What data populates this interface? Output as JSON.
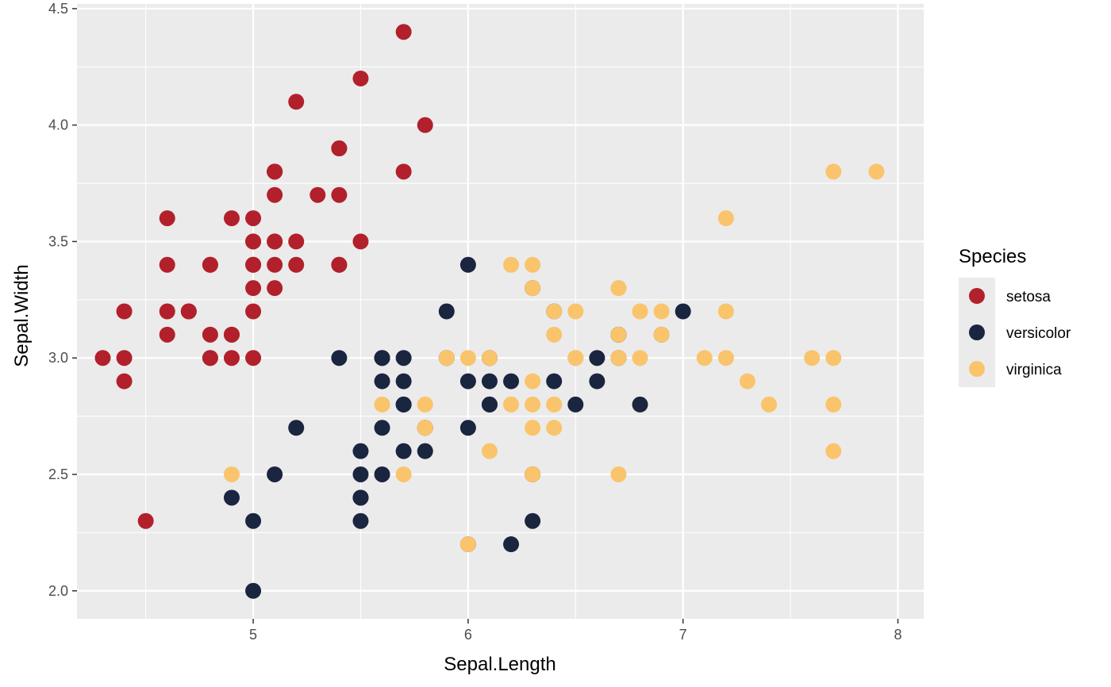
{
  "chart_data": {
    "type": "scatter",
    "title": "",
    "xlabel": "Sepal.Length",
    "ylabel": "Sepal.Width",
    "xlim": [
      4.18,
      8.12
    ],
    "ylim": [
      1.88,
      4.52
    ],
    "x_ticks": [
      5,
      6,
      7,
      8
    ],
    "x_tick_labels": [
      "5",
      "6",
      "7",
      "8"
    ],
    "y_ticks": [
      2.0,
      2.5,
      3.0,
      3.5,
      4.0,
      4.5
    ],
    "y_tick_labels": [
      "2.0",
      "2.5",
      "3.0",
      "3.5",
      "4.0",
      "4.5"
    ],
    "grid": true,
    "legend": {
      "title": "Species",
      "position": "right"
    },
    "series": [
      {
        "name": "setosa",
        "color": "#b2202b",
        "points": [
          [
            5.1,
            3.5
          ],
          [
            4.9,
            3.0
          ],
          [
            4.7,
            3.2
          ],
          [
            4.6,
            3.1
          ],
          [
            5.0,
            3.6
          ],
          [
            5.4,
            3.9
          ],
          [
            4.6,
            3.4
          ],
          [
            5.0,
            3.4
          ],
          [
            4.4,
            2.9
          ],
          [
            4.9,
            3.1
          ],
          [
            5.4,
            3.7
          ],
          [
            4.8,
            3.4
          ],
          [
            4.8,
            3.0
          ],
          [
            4.3,
            3.0
          ],
          [
            5.8,
            4.0
          ],
          [
            5.7,
            4.4
          ],
          [
            5.4,
            3.9
          ],
          [
            5.1,
            3.5
          ],
          [
            5.7,
            3.8
          ],
          [
            5.1,
            3.8
          ],
          [
            5.4,
            3.4
          ],
          [
            5.1,
            3.7
          ],
          [
            4.6,
            3.6
          ],
          [
            5.1,
            3.3
          ],
          [
            4.8,
            3.4
          ],
          [
            5.0,
            3.0
          ],
          [
            5.0,
            3.4
          ],
          [
            5.2,
            3.5
          ],
          [
            5.2,
            3.4
          ],
          [
            4.7,
            3.2
          ],
          [
            4.8,
            3.1
          ],
          [
            5.4,
            3.4
          ],
          [
            5.2,
            4.1
          ],
          [
            5.5,
            4.2
          ],
          [
            4.9,
            3.1
          ],
          [
            5.0,
            3.2
          ],
          [
            5.5,
            3.5
          ],
          [
            4.9,
            3.6
          ],
          [
            4.4,
            3.0
          ],
          [
            5.1,
            3.4
          ],
          [
            5.0,
            3.5
          ],
          [
            4.5,
            2.3
          ],
          [
            4.4,
            3.2
          ],
          [
            5.0,
            3.5
          ],
          [
            5.1,
            3.8
          ],
          [
            4.8,
            3.0
          ],
          [
            5.1,
            3.8
          ],
          [
            4.6,
            3.2
          ],
          [
            5.3,
            3.7
          ],
          [
            5.0,
            3.3
          ]
        ]
      },
      {
        "name": "versicolor",
        "color": "#1a2540",
        "points": [
          [
            7.0,
            3.2
          ],
          [
            6.4,
            3.2
          ],
          [
            6.9,
            3.1
          ],
          [
            5.5,
            2.3
          ],
          [
            6.5,
            2.8
          ],
          [
            5.7,
            2.8
          ],
          [
            6.3,
            3.3
          ],
          [
            4.9,
            2.4
          ],
          [
            6.6,
            2.9
          ],
          [
            5.2,
            2.7
          ],
          [
            5.0,
            2.0
          ],
          [
            5.9,
            3.0
          ],
          [
            6.0,
            2.2
          ],
          [
            6.1,
            2.9
          ],
          [
            5.6,
            2.9
          ],
          [
            6.7,
            3.1
          ],
          [
            5.6,
            3.0
          ],
          [
            5.8,
            2.7
          ],
          [
            6.2,
            2.2
          ],
          [
            5.6,
            2.5
          ],
          [
            5.9,
            3.2
          ],
          [
            6.1,
            2.8
          ],
          [
            6.3,
            2.5
          ],
          [
            6.1,
            2.8
          ],
          [
            6.4,
            2.9
          ],
          [
            6.6,
            3.0
          ],
          [
            6.8,
            2.8
          ],
          [
            6.7,
            3.0
          ],
          [
            6.0,
            2.9
          ],
          [
            5.7,
            2.6
          ],
          [
            5.5,
            2.4
          ],
          [
            5.5,
            2.4
          ],
          [
            5.8,
            2.7
          ],
          [
            6.0,
            2.7
          ],
          [
            5.4,
            3.0
          ],
          [
            6.0,
            3.4
          ],
          [
            6.7,
            3.1
          ],
          [
            6.3,
            2.3
          ],
          [
            5.6,
            3.0
          ],
          [
            5.5,
            2.5
          ],
          [
            5.5,
            2.6
          ],
          [
            6.1,
            3.0
          ],
          [
            5.8,
            2.6
          ],
          [
            5.0,
            2.3
          ],
          [
            5.6,
            2.7
          ],
          [
            5.7,
            3.0
          ],
          [
            5.7,
            2.9
          ],
          [
            6.2,
            2.9
          ],
          [
            5.1,
            2.5
          ],
          [
            5.7,
            2.8
          ]
        ]
      },
      {
        "name": "virginica",
        "color": "#f9c46b",
        "points": [
          [
            6.3,
            3.3
          ],
          [
            5.8,
            2.7
          ],
          [
            7.1,
            3.0
          ],
          [
            6.3,
            2.9
          ],
          [
            6.5,
            3.0
          ],
          [
            7.6,
            3.0
          ],
          [
            4.9,
            2.5
          ],
          [
            7.3,
            2.9
          ],
          [
            6.7,
            2.5
          ],
          [
            7.2,
            3.6
          ],
          [
            6.5,
            3.2
          ],
          [
            6.4,
            2.7
          ],
          [
            6.8,
            3.0
          ],
          [
            5.7,
            2.5
          ],
          [
            5.8,
            2.8
          ],
          [
            6.4,
            3.2
          ],
          [
            6.5,
            3.0
          ],
          [
            7.7,
            3.8
          ],
          [
            7.7,
            2.6
          ],
          [
            6.0,
            2.2
          ],
          [
            6.9,
            3.2
          ],
          [
            5.6,
            2.8
          ],
          [
            7.7,
            2.8
          ],
          [
            6.3,
            2.7
          ],
          [
            6.7,
            3.3
          ],
          [
            7.2,
            3.2
          ],
          [
            6.2,
            2.8
          ],
          [
            6.1,
            3.0
          ],
          [
            6.4,
            2.8
          ],
          [
            7.2,
            3.0
          ],
          [
            7.4,
            2.8
          ],
          [
            7.9,
            3.8
          ],
          [
            6.4,
            2.8
          ],
          [
            6.3,
            2.8
          ],
          [
            6.1,
            2.6
          ],
          [
            7.7,
            3.0
          ],
          [
            6.3,
            3.4
          ],
          [
            6.4,
            3.1
          ],
          [
            6.0,
            3.0
          ],
          [
            6.9,
            3.1
          ],
          [
            6.7,
            3.1
          ],
          [
            6.9,
            3.1
          ],
          [
            5.8,
            2.7
          ],
          [
            6.8,
            3.2
          ],
          [
            6.7,
            3.3
          ],
          [
            6.7,
            3.0
          ],
          [
            6.3,
            2.5
          ],
          [
            6.5,
            3.0
          ],
          [
            6.2,
            3.4
          ],
          [
            5.9,
            3.0
          ]
        ]
      }
    ]
  }
}
